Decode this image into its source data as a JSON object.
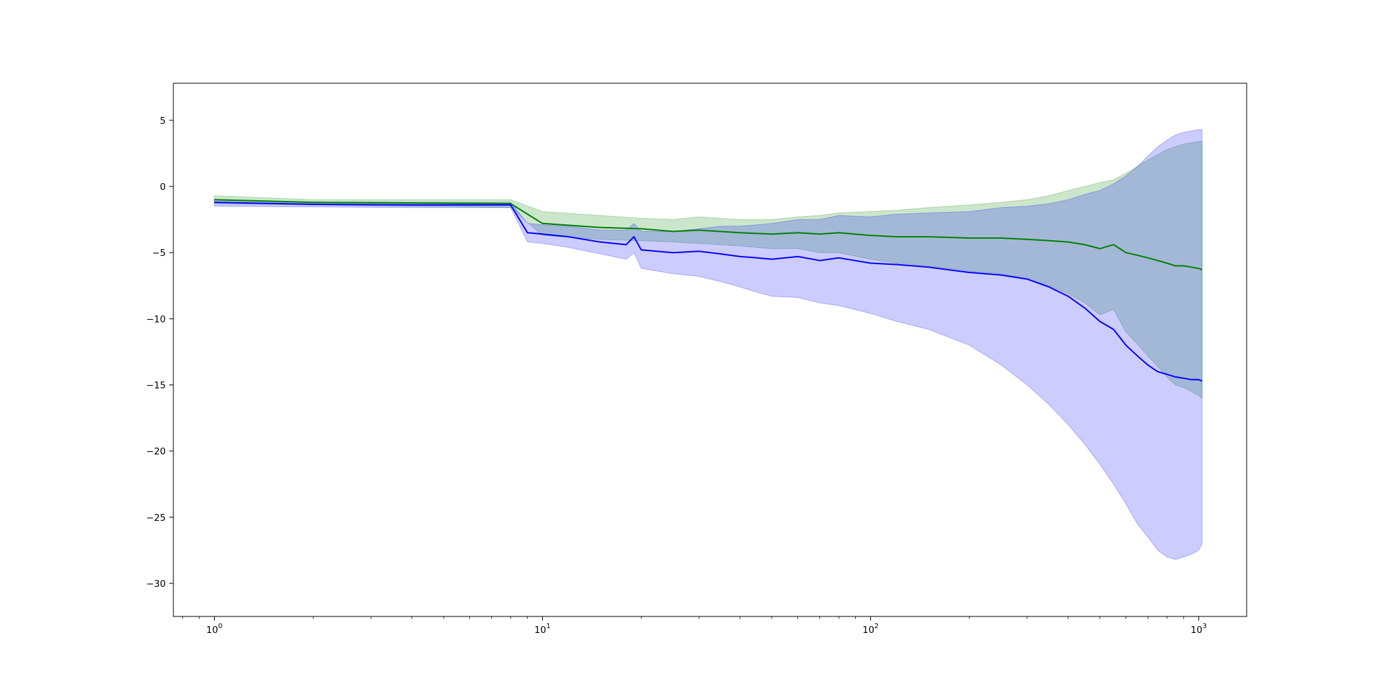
{
  "chart_data": {
    "type": "line",
    "title": "",
    "xlabel": "",
    "ylabel": "",
    "x_scale": "log",
    "xlim": [
      0.75,
      1400
    ],
    "ylim": [
      -32.5,
      7.8
    ],
    "grid": false,
    "x_ticks": [
      {
        "value": 1,
        "base": "10",
        "exp": "0"
      },
      {
        "value": 10,
        "base": "10",
        "exp": "1"
      },
      {
        "value": 100,
        "base": "10",
        "exp": "2"
      },
      {
        "value": 1000,
        "base": "10",
        "exp": "3"
      }
    ],
    "y_ticks": [
      {
        "value": 5,
        "label": "5"
      },
      {
        "value": 0,
        "label": "0"
      },
      {
        "value": -5,
        "label": "−5"
      },
      {
        "value": -10,
        "label": "−10"
      },
      {
        "value": -15,
        "label": "−15"
      },
      {
        "value": -20,
        "label": "−20"
      },
      {
        "value": -25,
        "label": "−25"
      },
      {
        "value": -30,
        "label": "−30"
      }
    ],
    "colors": {
      "green_line": "#008000",
      "green_band": "#008000",
      "blue_line": "#0000ff",
      "blue_band": "#0000ff"
    },
    "series": [
      {
        "color": "green",
        "x": [
          1,
          2,
          4,
          8,
          10,
          15,
          20,
          25,
          30,
          40,
          50,
          60,
          70,
          80,
          100,
          120,
          150,
          200,
          250,
          300,
          350,
          400,
          450,
          500,
          550,
          600,
          650,
          700,
          750,
          800,
          850,
          900,
          950,
          1000,
          1024
        ],
        "mean": [
          -1.0,
          -1.2,
          -1.25,
          -1.3,
          -2.8,
          -3.1,
          -3.2,
          -3.4,
          -3.3,
          -3.5,
          -3.6,
          -3.5,
          -3.6,
          -3.5,
          -3.7,
          -3.8,
          -3.8,
          -3.9,
          -3.9,
          -4.0,
          -4.1,
          -4.2,
          -4.4,
          -4.7,
          -4.4,
          -5.0,
          -5.2,
          -5.4,
          -5.6,
          -5.8,
          -6.0,
          -6.0,
          -6.1,
          -6.2,
          -6.3
        ],
        "upper": [
          -0.7,
          -1.0,
          -1.0,
          -1.0,
          -1.9,
          -2.2,
          -2.4,
          -2.5,
          -2.3,
          -2.5,
          -2.5,
          -2.3,
          -2.2,
          -2.0,
          -1.9,
          -1.8,
          -1.6,
          -1.4,
          -1.2,
          -1.0,
          -0.7,
          -0.3,
          0.0,
          0.3,
          0.5,
          1.0,
          1.5,
          2.0,
          2.4,
          2.8,
          3.0,
          3.2,
          3.3,
          3.4,
          3.4
        ],
        "lower": [
          -1.3,
          -1.4,
          -1.5,
          -1.6,
          -3.7,
          -4.0,
          -4.1,
          -4.2,
          -4.3,
          -4.5,
          -4.7,
          -4.7,
          -5.0,
          -5.0,
          -5.5,
          -5.8,
          -6.0,
          -6.4,
          -6.6,
          -7.0,
          -7.5,
          -8.1,
          -8.8,
          -9.7,
          -9.3,
          -11.0,
          -11.9,
          -12.8,
          -13.6,
          -14.4,
          -15.0,
          -15.2,
          -15.5,
          -15.8,
          -16.0
        ]
      },
      {
        "color": "blue",
        "x": [
          1,
          2,
          4,
          8,
          9,
          10,
          12,
          15,
          18,
          19,
          20,
          25,
          30,
          35,
          40,
          45,
          50,
          60,
          70,
          80,
          100,
          120,
          150,
          200,
          250,
          300,
          350,
          400,
          450,
          500,
          550,
          600,
          650,
          700,
          750,
          800,
          850,
          900,
          950,
          1000,
          1024
        ],
        "mean": [
          -1.2,
          -1.35,
          -1.4,
          -1.4,
          -3.5,
          -3.6,
          -3.8,
          -4.2,
          -4.4,
          -3.8,
          -4.8,
          -5.0,
          -4.9,
          -5.1,
          -5.3,
          -5.4,
          -5.5,
          -5.3,
          -5.6,
          -5.4,
          -5.8,
          -5.9,
          -6.1,
          -6.5,
          -6.7,
          -7.0,
          -7.6,
          -8.3,
          -9.2,
          -10.2,
          -10.8,
          -12.0,
          -12.8,
          -13.5,
          -14.0,
          -14.2,
          -14.4,
          -14.5,
          -14.6,
          -14.6,
          -14.7
        ],
        "upper": [
          -1.0,
          -1.2,
          -1.2,
          -1.2,
          -2.8,
          -2.9,
          -3.0,
          -3.3,
          -3.3,
          -2.8,
          -3.4,
          -3.4,
          -3.2,
          -3.0,
          -3.0,
          -2.9,
          -2.8,
          -2.5,
          -2.5,
          -2.2,
          -2.3,
          -2.1,
          -2.0,
          -1.9,
          -1.6,
          -1.5,
          -1.3,
          -1.0,
          -0.6,
          -0.3,
          0.2,
          0.8,
          1.5,
          2.3,
          3.0,
          3.5,
          3.9,
          4.1,
          4.2,
          4.3,
          4.3
        ],
        "lower": [
          -1.5,
          -1.55,
          -1.6,
          -1.6,
          -4.2,
          -4.3,
          -4.6,
          -5.1,
          -5.5,
          -5.0,
          -6.2,
          -6.6,
          -6.8,
          -7.2,
          -7.6,
          -8.0,
          -8.3,
          -8.4,
          -8.8,
          -9.0,
          -9.6,
          -10.2,
          -10.8,
          -12.0,
          -13.5,
          -15.0,
          -16.5,
          -18.0,
          -19.5,
          -21.0,
          -22.5,
          -24.0,
          -25.5,
          -26.5,
          -27.5,
          -28.0,
          -28.2,
          -28.0,
          -27.8,
          -27.5,
          -27.0
        ]
      }
    ]
  }
}
